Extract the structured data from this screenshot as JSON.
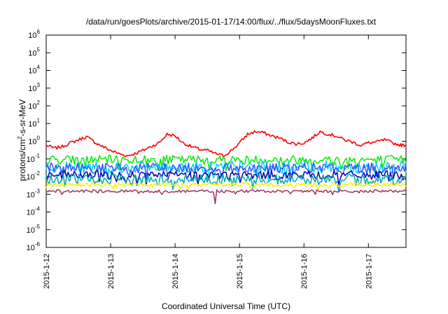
{
  "chart_data": {
    "type": "line",
    "title": "/data/run/goesPlots/archive/2015-01-17/14:00/flux/../flux/5daysMoonFluxes.txt",
    "xlabel": "Coordinated Universal Time (UTC)",
    "ylabel": {
      "base": "protons/cm",
      "sup": "2",
      "rest": "-s-sr-MeV"
    },
    "y_scale": "log",
    "ylim": [
      1e-06,
      1000000.0
    ],
    "xlim": [
      "2015-01-12",
      "2015-01-17 14:00"
    ],
    "x_ticks": [
      "2015-1-12",
      "2015-1-13",
      "2015-1-14",
      "2015-1-15",
      "2015-1-16",
      "2015-1-17"
    ],
    "y_ticks": [
      {
        "base": "10",
        "exp": "-6"
      },
      {
        "base": "10",
        "exp": "-5"
      },
      {
        "base": "10",
        "exp": "-4"
      },
      {
        "base": "10",
        "exp": "-3"
      },
      {
        "base": "10",
        "exp": "-2"
      },
      {
        "base": "10",
        "exp": "-1"
      },
      {
        "base": "10",
        "exp": "0"
      },
      {
        "base": "10",
        "exp": "1"
      },
      {
        "base": "10",
        "exp": "2"
      },
      {
        "base": "10",
        "exp": "3"
      },
      {
        "base": "10",
        "exp": "4"
      },
      {
        "base": "10",
        "exp": "5"
      },
      {
        "base": "10",
        "exp": "6"
      }
    ],
    "grid": false,
    "series": [
      {
        "color": "#ff0000",
        "x": [
          "2015-01-12 00:00",
          "2015-01-12 03:00",
          "2015-01-12 06:00",
          "2015-01-12 09:00",
          "2015-01-12 12:00",
          "2015-01-12 15:00",
          "2015-01-12 18:00",
          "2015-01-12 21:00",
          "2015-01-13 00:00",
          "2015-01-13 03:00",
          "2015-01-13 06:00",
          "2015-01-13 09:00",
          "2015-01-13 12:00",
          "2015-01-13 15:00",
          "2015-01-13 18:00",
          "2015-01-13 21:00",
          "2015-01-14 00:00",
          "2015-01-14 03:00",
          "2015-01-14 06:00",
          "2015-01-14 09:00",
          "2015-01-14 12:00",
          "2015-01-14 15:00",
          "2015-01-14 18:00",
          "2015-01-14 21:00",
          "2015-01-15 00:00",
          "2015-01-15 03:00",
          "2015-01-15 06:00",
          "2015-01-15 09:00",
          "2015-01-15 12:00",
          "2015-01-15 15:00",
          "2015-01-15 18:00",
          "2015-01-15 21:00",
          "2015-01-16 00:00",
          "2015-01-16 03:00",
          "2015-01-16 06:00",
          "2015-01-16 09:00",
          "2015-01-16 12:00",
          "2015-01-16 15:00",
          "2015-01-16 18:00",
          "2015-01-16 21:00",
          "2015-01-17 00:00",
          "2015-01-17 03:00",
          "2015-01-17 06:00",
          "2015-01-17 09:00",
          "2015-01-17 12:00",
          "2015-01-17 14:00"
        ],
        "y": [
          0.6,
          0.4,
          0.5,
          0.8,
          1.2,
          1.8,
          0.9,
          0.5,
          0.3,
          0.2,
          0.15,
          0.2,
          0.3,
          0.5,
          0.8,
          2.5,
          2.0,
          0.8,
          0.5,
          0.35,
          0.3,
          0.2,
          0.15,
          0.3,
          0.8,
          2.5,
          3.5,
          3.0,
          2.0,
          1.5,
          0.9,
          0.7,
          0.8,
          1.5,
          3.5,
          2.5,
          2.0,
          1.2,
          0.9,
          0.6,
          0.8,
          0.9,
          1.2,
          0.8,
          0.6,
          0.6
        ]
      },
      {
        "color": "#00ee00",
        "level": 0.09,
        "spread": 0.25
      },
      {
        "color": "#00ccff",
        "level": 0.035,
        "spread": 0.35
      },
      {
        "color": "#3355ff",
        "level": 0.03,
        "spread": 0.3
      },
      {
        "color": "#0000aa",
        "level": 0.012,
        "spread": 0.25
      },
      {
        "color": "#00aaaa",
        "level": 0.007,
        "spread": 0.3
      },
      {
        "color": "#ffee00",
        "level": 0.0035,
        "spread": 0.12
      },
      {
        "color": "#993366",
        "level": 0.0015,
        "spread": 0.08
      }
    ]
  }
}
